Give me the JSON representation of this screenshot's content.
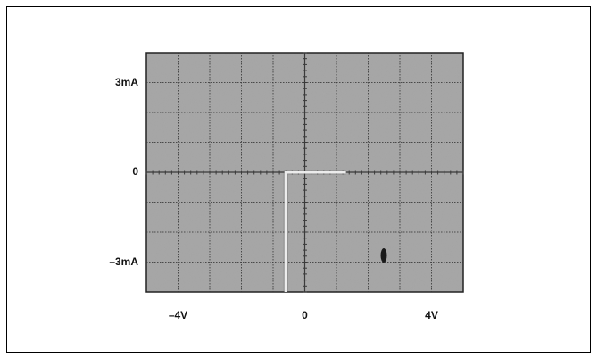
{
  "chart_data": {
    "type": "line",
    "title": "",
    "xlabel": "",
    "ylabel": "",
    "x_unit": "V",
    "y_unit": "mA",
    "xlim": [
      -5,
      5
    ],
    "ylim": [
      -4,
      4
    ],
    "x_tick_labels": [
      "-4V",
      "0",
      "4V"
    ],
    "x_tick_values": [
      -4,
      0,
      4
    ],
    "y_tick_labels": [
      "3mA",
      "0",
      "-3mA"
    ],
    "y_tick_values": [
      3,
      0,
      -3
    ],
    "grid": true,
    "background": "oscilloscope-screen",
    "series": [
      {
        "x": [
          -0.6,
          -0.6,
          -0.6,
          1.3
        ],
        "y": [
          -4.3,
          -3.0,
          0,
          0
        ]
      }
    ],
    "colors": {
      "screen": "#a8a8a8",
      "grid": "#3a3a3a",
      "trace": "#ececec",
      "text": "#111111"
    }
  }
}
